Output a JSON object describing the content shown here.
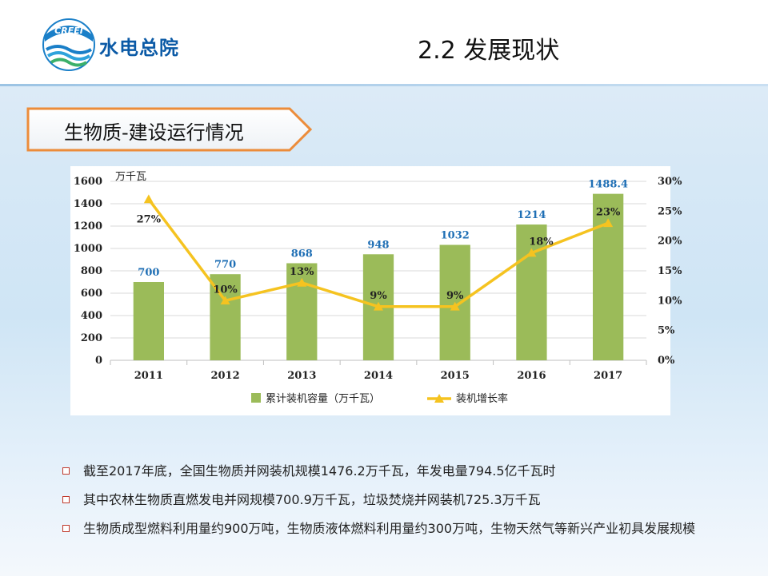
{
  "header": {
    "logo_badge": "CREEI",
    "logo_text": "水电总院",
    "page_title": "2.2 发展现状"
  },
  "section": {
    "title": "生物质-建设运行情况"
  },
  "chart_data": {
    "type": "bar",
    "categories": [
      "2011",
      "2012",
      "2013",
      "2014",
      "2015",
      "2016",
      "2017"
    ],
    "series": [
      {
        "name": "累计装机容量（万千瓦）",
        "type": "bar",
        "axis": "left",
        "values": [
          700,
          770,
          868,
          948,
          1032,
          1214,
          1488.4
        ],
        "labels": [
          "700",
          "770",
          "868",
          "948",
          "1032",
          "1214",
          "1488.4"
        ],
        "color": "#9bbb59"
      },
      {
        "name": "装机增长率",
        "type": "line",
        "axis": "right",
        "values": [
          27,
          10,
          13,
          9,
          9,
          18,
          23
        ],
        "labels": [
          "27%",
          "10%",
          "13%",
          "9%",
          "9%",
          "18%",
          "23%"
        ],
        "color": "#f5c320"
      }
    ],
    "y_left": {
      "unit_label": "万千瓦",
      "range": [
        0,
        1600
      ],
      "ticks": [
        "0",
        "200",
        "400",
        "600",
        "800",
        "1000",
        "1200",
        "1400",
        "1600"
      ]
    },
    "y_right": {
      "range": [
        0,
        30
      ],
      "ticks": [
        "0%",
        "5%",
        "10%",
        "15%",
        "20%",
        "25%",
        "30%"
      ]
    },
    "grid": true,
    "legend": "bottom",
    "bar_label_color": "#1f6fb5"
  },
  "bullets": [
    "截至2017年底，全国生物质并网装机规模1476.2万千瓦，年发电量794.5亿千瓦时",
    "其中农林生物质直燃发电并网规模700.9万千瓦，垃圾焚烧并网装机725.3万千瓦",
    "生物质成型燃料利用量约900万吨，生物质液体燃料利用量约300万吨，生物天然气等新兴产业初具发展规模"
  ]
}
